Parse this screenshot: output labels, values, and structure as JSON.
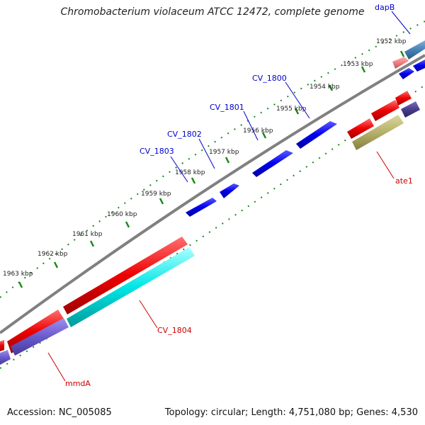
{
  "title": "Chromobacterium violaceum ATCC 12472, complete genome",
  "footer": {
    "accession": "Accession: NC_005085",
    "summary": "Topology: circular; Length: 4,751,080 bp; Genes: 4,530"
  },
  "ticks": [
    {
      "text": "1952 kbp"
    },
    {
      "text": "1953 kbp"
    },
    {
      "text": "1954 kbp"
    },
    {
      "text": "1955 kbp"
    },
    {
      "text": "1956 kbp"
    },
    {
      "text": "1957 kbp"
    },
    {
      "text": "1958 kbp"
    },
    {
      "text": "1959 kbp"
    },
    {
      "text": "1960 kbp"
    },
    {
      "text": "1961 kbp"
    },
    {
      "text": "1962 kbp"
    },
    {
      "text": "1963 kbp"
    }
  ],
  "genes": [
    {
      "name": "dapB",
      "color": "#0000cc"
    },
    {
      "name": "CV_1800",
      "color": "#0000cc"
    },
    {
      "name": "CV_1801",
      "color": "#0000cc"
    },
    {
      "name": "CV_1802",
      "color": "#0000cc"
    },
    {
      "name": "CV_1803",
      "color": "#0000cc"
    },
    {
      "name": "ate1",
      "color": "#cc0000"
    },
    {
      "name": "CV_1804",
      "color": "#cc0000"
    },
    {
      "name": "mmdA",
      "color": "#cc0000"
    }
  ],
  "colors": {
    "backbone": "#808080",
    "forward_cds": "#0000ee",
    "reverse_cds": "#ee0000",
    "tick_dots": "#1a8a1a",
    "cyan_feature": "#00e5e5",
    "purple_feature": "#6a5acd",
    "olive_feature": "#b5b06a",
    "steel_feature": "#4682b4",
    "pink_feature": "#f08080"
  }
}
